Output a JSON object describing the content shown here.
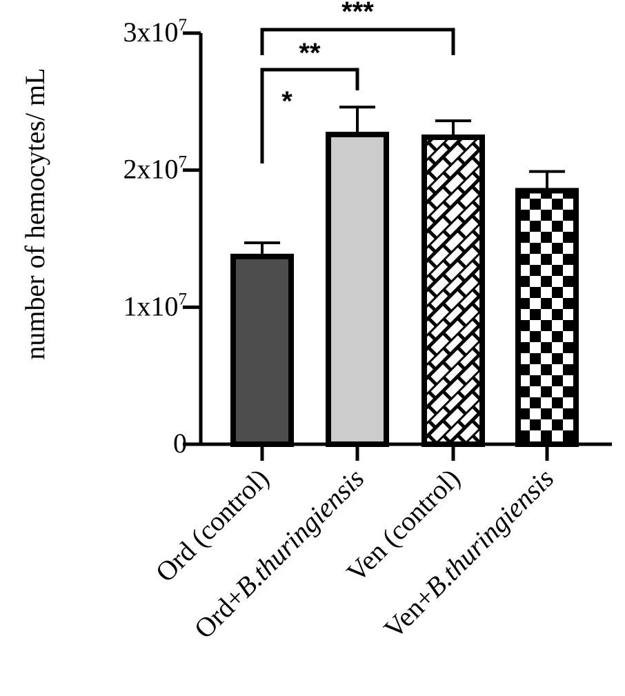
{
  "chart_data": {
    "type": "bar",
    "title": "",
    "xlabel": "",
    "ylabel": "number of hemocytes/ mL",
    "ylim": [
      0,
      30000000
    ],
    "yticks": [
      {
        "value": 0,
        "base": "0",
        "exp": ""
      },
      {
        "value": 10000000,
        "base": "1x10",
        "exp": "7"
      },
      {
        "value": 20000000,
        "base": "2x10",
        "exp": "7"
      },
      {
        "value": 30000000,
        "base": "3x10",
        "exp": "7"
      }
    ],
    "categories": [
      {
        "prefix": "Ord (control)",
        "italic": ""
      },
      {
        "prefix": "Ord+",
        "italic": "B.thuringiensis"
      },
      {
        "prefix": "Ven (control)",
        "italic": ""
      },
      {
        "prefix": "Ven+",
        "italic": "B.thuringiensis"
      }
    ],
    "values": [
      13700000,
      22600000,
      22400000,
      18500000
    ],
    "errors": [
      1000000,
      2000000,
      1200000,
      1400000
    ],
    "fills": [
      "#4d4d4d",
      "#cccccc",
      "pattern:brick",
      "pattern:checker"
    ],
    "significance": [
      {
        "from": 0,
        "to": 2,
        "label": "***"
      },
      {
        "from": 0,
        "to": 1,
        "label": "**"
      },
      {
        "from": 0,
        "to": 1,
        "label": "*"
      }
    ],
    "grid": false,
    "legend": "none"
  }
}
